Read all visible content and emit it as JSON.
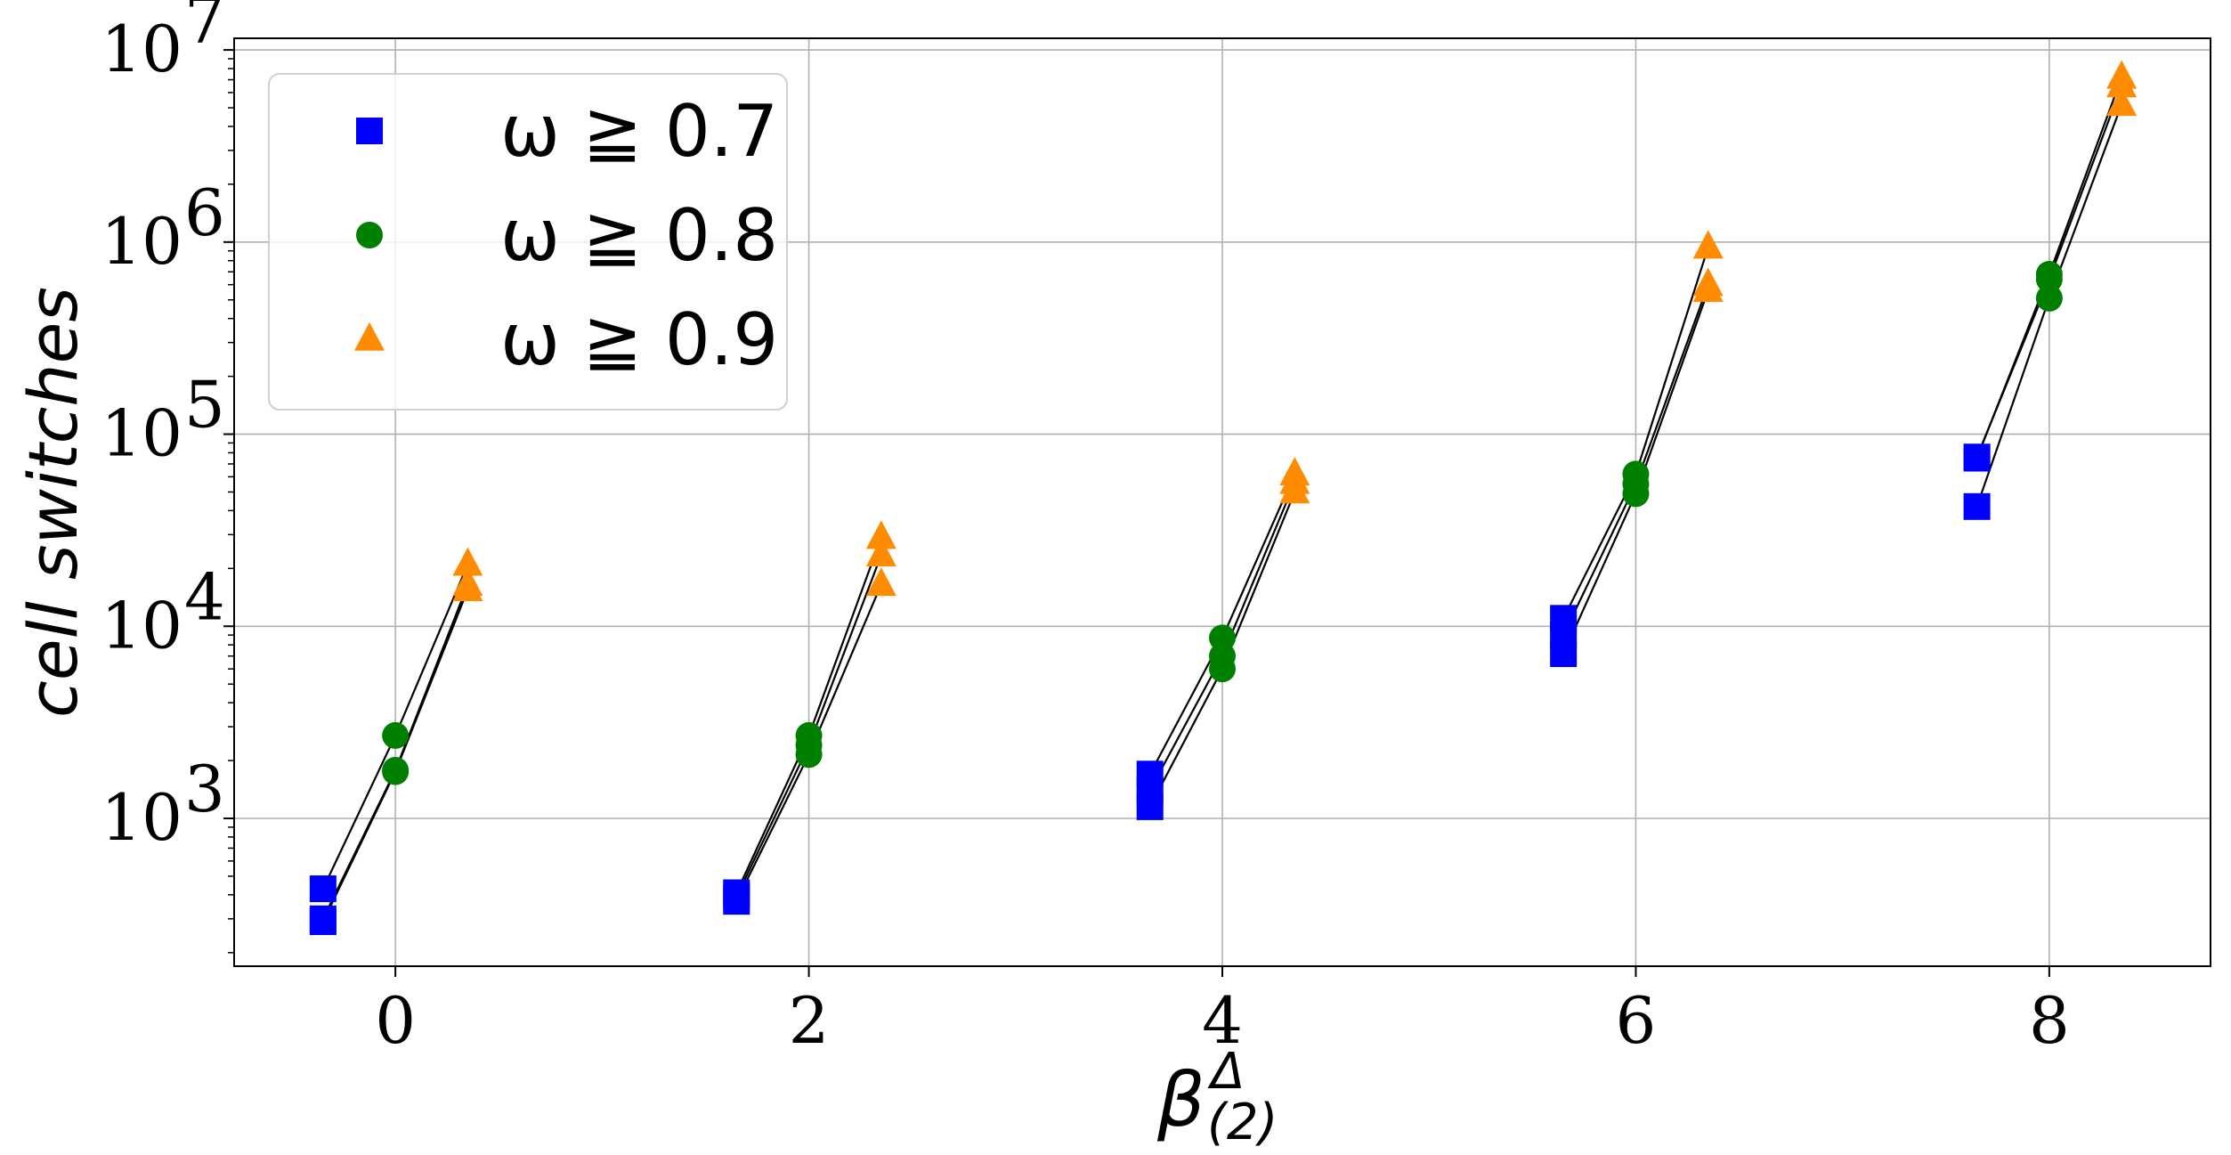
{
  "chart_data": {
    "type": "scatter",
    "xlabel": "β",
    "xlabel_sup": "Δ",
    "xlabel_sub": "(2)",
    "ylabel": "cell switches",
    "yscale": "log",
    "xlim": [
      -0.78,
      8.78
    ],
    "ylim": [
      170,
      11500000
    ],
    "grid": true,
    "legend_position": "top-left",
    "x_ticks": [
      0,
      2,
      4,
      6,
      8
    ],
    "x_tick_labels": [
      "0",
      "2",
      "4",
      "6",
      "8"
    ],
    "y_ticks": [
      {
        "value": 1000,
        "base": "10",
        "exp": "3"
      },
      {
        "value": 10000,
        "base": "10",
        "exp": "4"
      },
      {
        "value": 100000,
        "base": "10",
        "exp": "5"
      },
      {
        "value": 1000000,
        "base": "10",
        "exp": "6"
      },
      {
        "value": 10000000,
        "base": "10",
        "exp": "7"
      }
    ],
    "series": [
      {
        "name": "ω ≧ 0.7",
        "marker": "square",
        "color": "#0000ff",
        "points": [
          {
            "x": -0.35,
            "y": 430
          },
          {
            "x": -0.35,
            "y": 290
          },
          {
            "x": -0.35,
            "y": 300
          },
          {
            "x": 1.65,
            "y": 410
          },
          {
            "x": 1.65,
            "y": 370
          },
          {
            "x": 1.65,
            "y": 390
          },
          {
            "x": 3.65,
            "y": 1700
          },
          {
            "x": 3.65,
            "y": 1150
          },
          {
            "x": 3.65,
            "y": 1400
          },
          {
            "x": 5.65,
            "y": 11000
          },
          {
            "x": 5.65,
            "y": 7200
          },
          {
            "x": 5.65,
            "y": 9000
          },
          {
            "x": 7.65,
            "y": 75000
          },
          {
            "x": 7.65,
            "y": 42000
          },
          {
            "x": 7.65,
            "y": 76000
          }
        ]
      },
      {
        "name": "ω ≧ 0.8",
        "marker": "circle",
        "color": "#008000",
        "points": [
          {
            "x": 0,
            "y": 2700
          },
          {
            "x": 0,
            "y": 1750
          },
          {
            "x": 0,
            "y": 1780
          },
          {
            "x": 2,
            "y": 2700
          },
          {
            "x": 2,
            "y": 2150
          },
          {
            "x": 2,
            "y": 2400
          },
          {
            "x": 4,
            "y": 8700
          },
          {
            "x": 4,
            "y": 6000
          },
          {
            "x": 4,
            "y": 7000
          },
          {
            "x": 6,
            "y": 62000
          },
          {
            "x": 6,
            "y": 49000
          },
          {
            "x": 6,
            "y": 55000
          },
          {
            "x": 8,
            "y": 680000
          },
          {
            "x": 8,
            "y": 510000
          },
          {
            "x": 8,
            "y": 640000
          }
        ]
      },
      {
        "name": "ω ≧ 0.9",
        "marker": "triangle",
        "color": "#ff8c00",
        "points": [
          {
            "x": 0.35,
            "y": 21000
          },
          {
            "x": 0.35,
            "y": 15500
          },
          {
            "x": 0.35,
            "y": 16500
          },
          {
            "x": 2.35,
            "y": 29000
          },
          {
            "x": 2.35,
            "y": 16500
          },
          {
            "x": 2.35,
            "y": 23500
          },
          {
            "x": 4.35,
            "y": 62000
          },
          {
            "x": 4.35,
            "y": 50000
          },
          {
            "x": 4.35,
            "y": 56000
          },
          {
            "x": 6.35,
            "y": 940000
          },
          {
            "x": 6.35,
            "y": 560000
          },
          {
            "x": 6.35,
            "y": 600000
          },
          {
            "x": 8.35,
            "y": 7200000
          },
          {
            "x": 8.35,
            "y": 5200000
          },
          {
            "x": 8.35,
            "y": 6500000
          }
        ]
      }
    ],
    "connections": [
      [
        [
          -0.35,
          430
        ],
        [
          0,
          2700
        ],
        [
          0.35,
          21000
        ]
      ],
      [
        [
          -0.35,
          290
        ],
        [
          0,
          1750
        ],
        [
          0.35,
          15500
        ]
      ],
      [
        [
          -0.35,
          300
        ],
        [
          0,
          1780
        ],
        [
          0.35,
          16500
        ]
      ],
      [
        [
          1.65,
          410
        ],
        [
          2,
          2700
        ],
        [
          2.35,
          29000
        ]
      ],
      [
        [
          1.65,
          370
        ],
        [
          2,
          2150
        ],
        [
          2.35,
          16500
        ]
      ],
      [
        [
          1.65,
          390
        ],
        [
          2,
          2400
        ],
        [
          2.35,
          23500
        ]
      ],
      [
        [
          3.65,
          1700
        ],
        [
          4,
          8700
        ],
        [
          4.35,
          62000
        ]
      ],
      [
        [
          3.65,
          1150
        ],
        [
          4,
          6000
        ],
        [
          4.35,
          50000
        ]
      ],
      [
        [
          3.65,
          1400
        ],
        [
          4,
          7000
        ],
        [
          4.35,
          56000
        ]
      ],
      [
        [
          5.65,
          11000
        ],
        [
          6,
          62000
        ],
        [
          6.35,
          940000
        ]
      ],
      [
        [
          5.65,
          7200
        ],
        [
          6,
          49000
        ],
        [
          6.35,
          560000
        ]
      ],
      [
        [
          5.65,
          9000
        ],
        [
          6,
          55000
        ],
        [
          6.35,
          600000
        ]
      ],
      [
        [
          7.65,
          75000
        ],
        [
          8,
          680000
        ],
        [
          8.35,
          7200000
        ]
      ],
      [
        [
          7.65,
          42000
        ],
        [
          8,
          510000
        ],
        [
          8.35,
          5200000
        ]
      ],
      [
        [
          7.65,
          76000
        ],
        [
          8,
          640000
        ],
        [
          8.35,
          6500000
        ]
      ]
    ]
  }
}
